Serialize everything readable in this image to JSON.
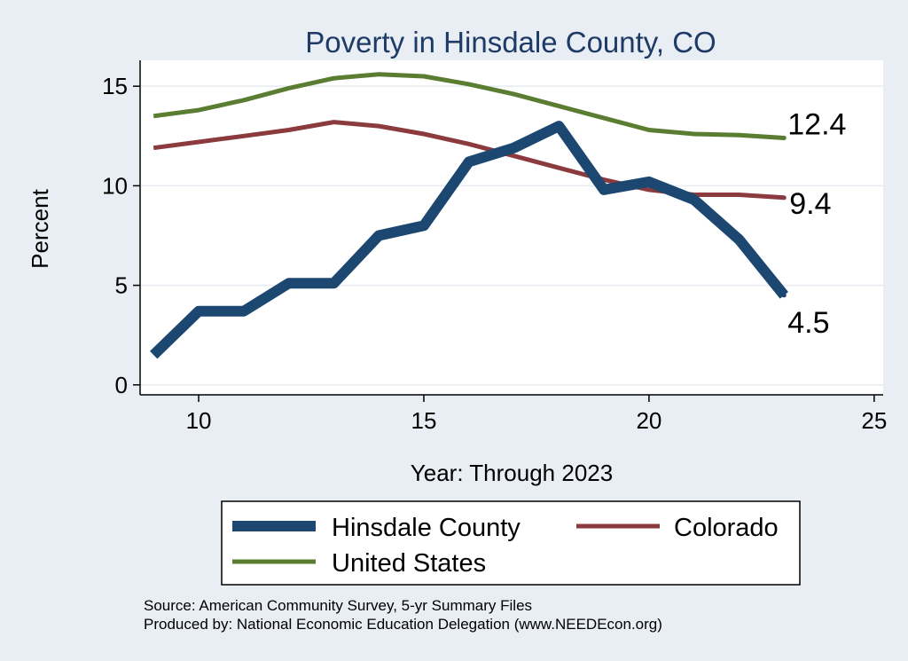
{
  "chart_data": {
    "type": "line",
    "title": "Poverty in Hinsdale County, CO",
    "xlabel": "Year: Through 2023",
    "ylabel": "Percent",
    "xlim": [
      8.7,
      25.2
    ],
    "ylim": [
      -0.5,
      16.3
    ],
    "xticks": [
      "10",
      "15",
      "20",
      "25"
    ],
    "yticks": [
      "0",
      "5",
      "10",
      "15"
    ],
    "x": [
      9,
      10,
      11,
      12,
      13,
      14,
      15,
      16,
      17,
      18,
      19,
      20,
      21,
      22,
      23
    ],
    "series": [
      {
        "name": "Hinsdale County",
        "color": "#1c4770",
        "values": [
          1.5,
          3.7,
          3.7,
          5.1,
          5.1,
          7.5,
          8.0,
          11.2,
          11.9,
          13.0,
          9.8,
          10.2,
          9.3,
          7.3,
          4.5
        ],
        "end_label": "4.5"
      },
      {
        "name": "Colorado",
        "color": "#8b3a3e",
        "values": [
          11.9,
          12.2,
          12.5,
          12.8,
          13.2,
          13.0,
          12.6,
          12.1,
          11.5,
          10.9,
          10.3,
          9.8,
          9.55,
          9.55,
          9.4
        ],
        "end_label": "9.4"
      },
      {
        "name": "United States",
        "color": "#5a7d32",
        "values": [
          13.5,
          13.8,
          14.3,
          14.9,
          15.4,
          15.6,
          15.5,
          15.1,
          14.6,
          14.0,
          13.4,
          12.8,
          12.6,
          12.55,
          12.4
        ],
        "end_label": "12.4"
      }
    ]
  },
  "notes": {
    "source": "Source: American Community Survey, 5-yr Summary Files",
    "produced_by": "Produced by: National Economic Education Delegation (www.NEEDEcon.org)"
  }
}
